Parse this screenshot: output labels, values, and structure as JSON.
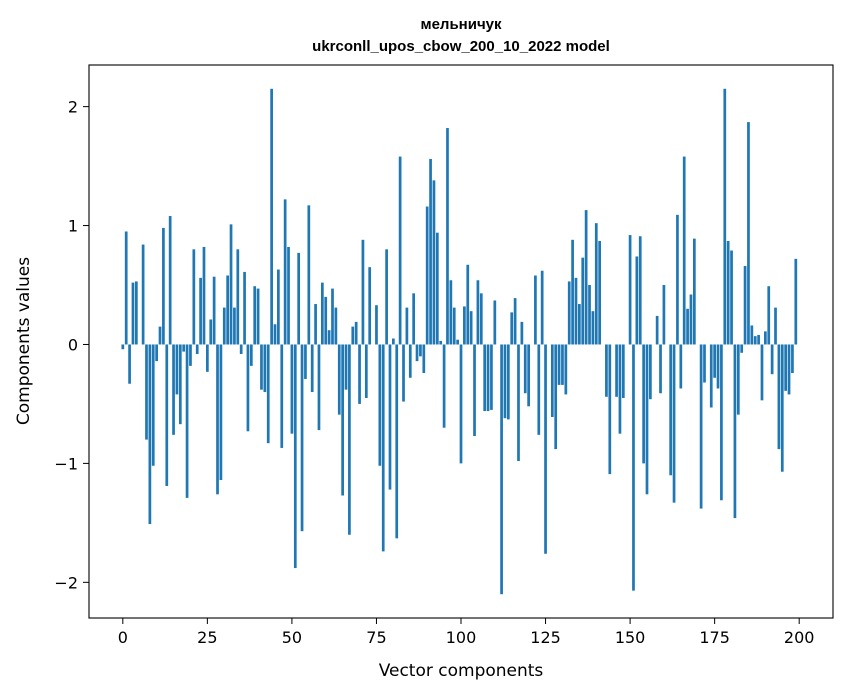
{
  "chart_data": {
    "type": "bar",
    "title": "мельничук",
    "subtitle": "ukrconll_upos_cbow_200_10_2022 model",
    "xlabel": "Vector components",
    "ylabel": "Components values",
    "xlim": [
      -10,
      210
    ],
    "ylim": [
      -2.3,
      2.35
    ],
    "xticks": [
      0,
      25,
      50,
      75,
      100,
      125,
      150,
      175,
      200
    ],
    "yticks": [
      -2,
      -1,
      0,
      1,
      2
    ],
    "ytick_labels": [
      "−2",
      "−1",
      "0",
      "1",
      "2"
    ],
    "bar_color": "#1f77b4",
    "grid": false,
    "values": [
      -0.04,
      0.95,
      -0.33,
      0.52,
      0.53,
      0.0,
      0.84,
      -0.8,
      -1.51,
      -1.02,
      -0.14,
      0.15,
      0.98,
      -1.19,
      1.08,
      -0.76,
      -0.42,
      -0.67,
      -0.06,
      -1.29,
      -0.18,
      0.8,
      -0.08,
      0.56,
      0.82,
      -0.23,
      0.21,
      0.57,
      -1.26,
      -1.14,
      0.31,
      0.58,
      1.01,
      0.31,
      0.8,
      -0.08,
      0.61,
      -0.73,
      -0.18,
      0.49,
      0.47,
      -0.38,
      -0.4,
      -0.83,
      2.15,
      0.17,
      0.63,
      -0.87,
      1.22,
      0.82,
      -0.75,
      -1.88,
      0.77,
      -1.57,
      -0.29,
      1.17,
      -0.4,
      0.34,
      -0.72,
      0.52,
      0.4,
      0.12,
      0.47,
      0.31,
      -0.59,
      -1.27,
      -0.38,
      -1.6,
      0.15,
      0.19,
      -0.5,
      0.88,
      -0.45,
      0.65,
      0.0,
      0.33,
      -1.02,
      -1.74,
      0.8,
      -1.22,
      0.05,
      -1.63,
      1.58,
      -0.48,
      0.31,
      -0.28,
      0.43,
      -0.14,
      -0.1,
      -0.24,
      1.16,
      1.56,
      1.38,
      0.94,
      0.03,
      -0.7,
      1.82,
      0.54,
      0.31,
      0.04,
      -1.0,
      0.32,
      0.67,
      0.28,
      -0.77,
      0.54,
      0.43,
      -0.56,
      -0.56,
      -0.55,
      0.37,
      0.0,
      -2.1,
      -0.62,
      -0.63,
      0.27,
      0.39,
      -0.98,
      0.19,
      -0.41,
      -0.52,
      0.0,
      0.58,
      -0.76,
      0.62,
      -1.76,
      0.0,
      -0.61,
      -0.88,
      -0.34,
      -0.34,
      -0.42,
      0.53,
      0.88,
      0.56,
      0.34,
      0.73,
      1.13,
      0.5,
      0.28,
      1.02,
      0.87,
      0.0,
      -0.44,
      -1.09,
      0.0,
      -0.44,
      -0.75,
      -0.45,
      0.0,
      0.92,
      -2.07,
      0.74,
      0.91,
      -1.0,
      -1.26,
      -0.46,
      0.0,
      0.24,
      -0.41,
      0.5,
      0.0,
      -1.1,
      -1.33,
      1.09,
      -0.37,
      1.58,
      0.3,
      0.42,
      0.89,
      0.0,
      -1.38,
      -0.32,
      0.0,
      -0.53,
      -0.28,
      -0.37,
      -1.31,
      2.15,
      0.87,
      0.79,
      -1.46,
      -0.59,
      -0.07,
      0.66,
      1.87,
      0.16,
      0.07,
      0.08,
      -0.47,
      0.11,
      0.49,
      -0.25,
      0.31,
      -0.88,
      -1.07,
      -0.39,
      -0.42,
      -0.24,
      0.72
    ]
  }
}
